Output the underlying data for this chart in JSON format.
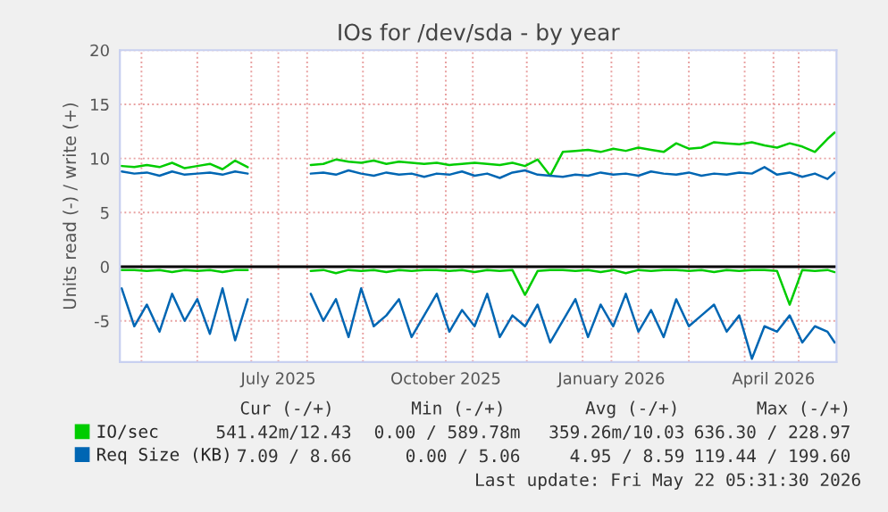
{
  "chart_data": {
    "type": "line",
    "title": "IOs for /dev/sda - by year",
    "ylabel": "Units read (-) / write (+)",
    "x": [
      "2025-04-20",
      "2025-04-27",
      "2025-05-04",
      "2025-05-11",
      "2025-05-18",
      "2025-05-25",
      "2025-06-01",
      "2025-06-08",
      "2025-06-15",
      "2025-06-22",
      "2025-06-29",
      "2025-07-06",
      "2025-07-13",
      "2025-07-20",
      "2025-07-27",
      "2025-08-03",
      "2025-08-10",
      "2025-08-17",
      "2025-08-24",
      "2025-08-31",
      "2025-09-07",
      "2025-09-14",
      "2025-09-21",
      "2025-09-28",
      "2025-10-05",
      "2025-10-12",
      "2025-10-19",
      "2025-10-26",
      "2025-11-02",
      "2025-11-09",
      "2025-11-16",
      "2025-11-23",
      "2025-11-30",
      "2025-12-07",
      "2025-12-14",
      "2025-12-21",
      "2025-12-28",
      "2026-01-04",
      "2026-01-11",
      "2026-01-18",
      "2026-01-25",
      "2026-02-01",
      "2026-02-08",
      "2026-02-15",
      "2026-02-22",
      "2026-03-01",
      "2026-03-08",
      "2026-03-15",
      "2026-03-22",
      "2026-03-29",
      "2026-04-05",
      "2026-04-12",
      "2026-04-19",
      "2026-04-26",
      "2026-05-03",
      "2026-05-10",
      "2026-05-17",
      "2026-05-21"
    ],
    "series": [
      {
        "name": "IO/sec",
        "color": "#00cc00",
        "values": [
          9.3,
          9.2,
          9.4,
          9.2,
          9.6,
          9.1,
          9.3,
          9.5,
          9.0,
          9.8,
          9.2,
          null,
          null,
          null,
          null,
          9.4,
          9.5,
          9.9,
          9.7,
          9.6,
          9.8,
          9.5,
          9.7,
          9.6,
          9.5,
          9.6,
          9.4,
          9.5,
          9.6,
          9.5,
          9.4,
          9.6,
          9.3,
          9.9,
          8.4,
          10.6,
          10.7,
          10.8,
          10.6,
          10.9,
          10.7,
          11.0,
          10.8,
          10.6,
          11.4,
          10.9,
          11.0,
          11.5,
          11.4,
          11.3,
          11.5,
          11.2,
          11.0,
          11.4,
          11.1,
          10.6,
          11.8,
          12.4
        ]
      },
      {
        "name": "Req Size (KB)",
        "color": "#0066b3",
        "values": [
          8.8,
          8.6,
          8.7,
          8.4,
          8.8,
          8.5,
          8.6,
          8.7,
          8.5,
          8.8,
          8.6,
          null,
          null,
          null,
          null,
          8.6,
          8.7,
          8.5,
          8.9,
          8.6,
          8.4,
          8.7,
          8.5,
          8.6,
          8.3,
          8.6,
          8.5,
          8.8,
          8.4,
          8.6,
          8.2,
          8.7,
          8.9,
          8.5,
          8.4,
          8.3,
          8.5,
          8.4,
          8.7,
          8.5,
          8.6,
          8.4,
          8.8,
          8.6,
          8.5,
          8.7,
          8.4,
          8.6,
          8.5,
          8.7,
          8.6,
          9.2,
          8.5,
          8.7,
          8.3,
          8.6,
          8.1,
          8.7
        ]
      },
      {
        "color": "#00cc00",
        "values": [
          -0.3,
          -0.3,
          -0.4,
          -0.3,
          -0.5,
          -0.3,
          -0.4,
          -0.3,
          -0.5,
          -0.3,
          -0.3,
          null,
          null,
          null,
          null,
          -0.4,
          -0.3,
          -0.6,
          -0.3,
          -0.4,
          -0.3,
          -0.5,
          -0.3,
          -0.4,
          -0.3,
          -0.3,
          -0.4,
          -0.3,
          -0.5,
          -0.3,
          -0.4,
          -0.3,
          -2.6,
          -0.4,
          -0.3,
          -0.3,
          -0.4,
          -0.3,
          -0.5,
          -0.3,
          -0.6,
          -0.3,
          -0.4,
          -0.3,
          -0.3,
          -0.4,
          -0.3,
          -0.5,
          -0.3,
          -0.4,
          -0.3,
          -0.3,
          -0.4,
          -3.5,
          -0.3,
          -0.4,
          -0.3,
          -0.5
        ]
      },
      {
        "color": "#0066b3",
        "values": [
          -2.0,
          -5.5,
          -3.5,
          -6.0,
          -2.5,
          -5.0,
          -3.0,
          -6.2,
          -2.0,
          -6.8,
          -3.0,
          null,
          null,
          null,
          null,
          -2.5,
          -5.0,
          -3.0,
          -6.5,
          -2.0,
          -5.5,
          -4.5,
          -3.0,
          -6.5,
          -4.5,
          -2.5,
          -6.0,
          -4.0,
          -5.5,
          -2.5,
          -6.5,
          -4.5,
          -5.5,
          -3.5,
          -7.0,
          -5.0,
          -3.0,
          -6.5,
          -3.5,
          -5.5,
          -2.5,
          -6.0,
          -4.0,
          -6.5,
          -3.0,
          -5.5,
          -4.5,
          -3.5,
          -6.0,
          -4.5,
          -8.5,
          -5.5,
          -6.0,
          -4.5,
          -7.0,
          -5.5,
          -6.0,
          -7.0
        ]
      }
    ],
    "xlim": [
      "2025-04-19",
      "2026-05-22"
    ],
    "xticks": [
      {
        "value": "2025-05-01",
        "label": null
      },
      {
        "value": "2025-06-01",
        "label": null
      },
      {
        "value": "2025-07-01",
        "label": null
      },
      {
        "value": "2025-07-16",
        "label": "July 2025"
      },
      {
        "value": "2025-08-01",
        "label": null
      },
      {
        "value": "2025-09-01",
        "label": null
      },
      {
        "value": "2025-10-01",
        "label": null
      },
      {
        "value": "2025-10-17",
        "label": "October 2025"
      },
      {
        "value": "2025-11-01",
        "label": null
      },
      {
        "value": "2025-12-01",
        "label": null
      },
      {
        "value": "2026-01-01",
        "label": null
      },
      {
        "value": "2026-01-17",
        "label": "January 2026"
      },
      {
        "value": "2026-02-01",
        "label": null
      },
      {
        "value": "2026-03-01",
        "label": null
      },
      {
        "value": "2026-04-01",
        "label": null
      },
      {
        "value": "2026-04-17",
        "label": "April 2026"
      },
      {
        "value": "2026-05-01",
        "label": null
      }
    ],
    "ylim": [
      -8.8,
      20
    ],
    "yticks": [
      -5,
      0,
      5,
      10,
      15,
      20
    ],
    "ref_lines": [
      {
        "axis": "y",
        "value": 0,
        "color": "#000000"
      }
    ],
    "grid": true,
    "legend": "bottom",
    "line_style": "solid",
    "marker": "none",
    "annotations": [
      "Cur (-/+)",
      "Min (-/+)",
      "Avg (-/+)",
      "Max (-/+)",
      "541.42m/12.43",
      "0.00 / 589.78m",
      "359.26m/10.03",
      "636.30 / 228.97",
      "7.09 / 8.66",
      "0.00 / 5.06",
      "4.95 / 8.59",
      "119.44 / 199.60",
      "Last update: Fri May 22 05:31:30 2026"
    ]
  }
}
